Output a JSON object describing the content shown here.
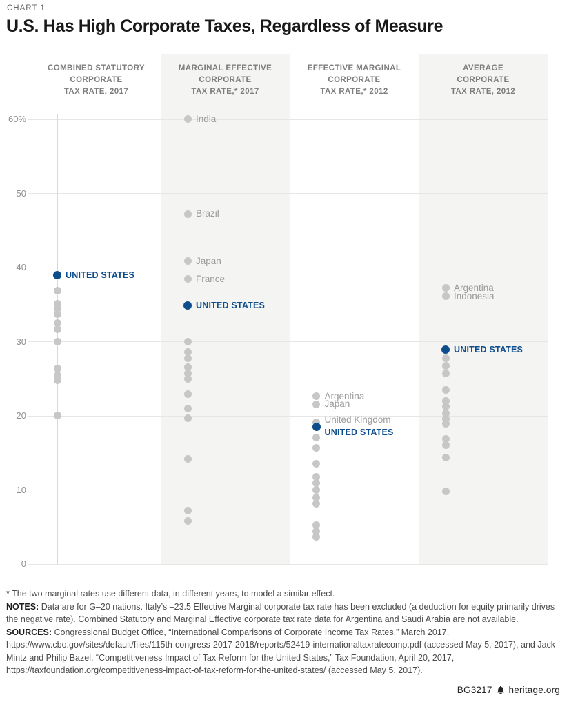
{
  "page": {
    "kicker": "CHART 1",
    "title": "U.S. Has High Corporate Taxes, Regardless of Measure",
    "footer_id": "BG3217",
    "footer_site": "heritage.org"
  },
  "footnotes": {
    "asterisk": "* The two marginal rates use different data, in different years, to model a similar effect.",
    "notes_label": "NOTES:",
    "notes_text": "Data are for G–20 nations. Italy’s –23.5 Effective Marginal corporate tax rate has been excluded (a deduction for equity primarily drives the negative rate). Combined Statutory and Marginal Effective corporate tax rate data for Argentina and Saudi Arabia are not available.",
    "sources_label": "SOURCES:",
    "sources_text": "Congressional Budget Office, “International Comparisons of Corporate Income Tax Rates,” March 2017, https://www.cbo.gov/sites/default/files/115th-congress-2017-2018/reports/52419-internationaltaxratecomp.pdf (accessed May 5, 2017), and Jack Mintz and Philip Bazel, “Competitiveness Impact of Tax Reform for the United States,” Tax Foundation, April 20, 2017, https://taxfoundation.org/competitiveness-impact-of-tax-reform-for-the-united-states/ (accessed May 5, 2017)."
  },
  "colors": {
    "us_blue": "#0e4d8c",
    "dot_gray": "#c7c7c7",
    "band_gray": "#f4f4f2",
    "grid_gray": "#e6e6e4"
  },
  "chart_data": {
    "type": "scatter",
    "subtype": "dot-strip-plot",
    "units": "percent",
    "ylim": [
      0,
      60
    ],
    "grid": true,
    "yticks": [
      {
        "label": "60%",
        "value": 60
      },
      {
        "label": "50",
        "value": 50
      },
      {
        "label": "40",
        "value": 40
      },
      {
        "label": "30",
        "value": 30
      },
      {
        "label": "20",
        "value": 20
      },
      {
        "label": "10",
        "value": 10
      },
      {
        "label": "0",
        "value": 0
      }
    ],
    "columns": [
      {
        "header_lines": [
          "COMBINED STATUTORY",
          "CORPORATE",
          "TAX RATE, 2017"
        ],
        "shaded_band": false,
        "us": {
          "label": "UNITED STATES",
          "value": 38.9
        },
        "labeled_points": [],
        "unlabeled_points": [
          36.8,
          35.1,
          34.4,
          33.7,
          32.5,
          31.6,
          30.0,
          26.3,
          25.4,
          24.7,
          20.0
        ]
      },
      {
        "header_lines": [
          "MARGINAL EFFECTIVE",
          "CORPORATE",
          "TAX RATE,* 2017"
        ],
        "shaded_band": true,
        "us": {
          "label": "UNITED STATES",
          "value": 34.8
        },
        "labeled_points": [
          {
            "label": "India",
            "value": 60.0
          },
          {
            "label": "Brazil",
            "value": 47.2
          },
          {
            "label": "Japan",
            "value": 40.8
          },
          {
            "label": "France",
            "value": 38.4
          }
        ],
        "unlabeled_points": [
          30.0,
          28.6,
          27.7,
          26.5,
          25.7,
          24.9,
          22.9,
          20.9,
          19.6,
          14.1,
          7.2,
          5.8
        ]
      },
      {
        "header_lines": [
          "EFFECTIVE MARGINAL",
          "CORPORATE",
          "TAX RATE,* 2012"
        ],
        "shaded_band": false,
        "us": {
          "label": "UNITED STATES",
          "value": 18.5,
          "label_dy": 8
        },
        "labeled_points": [
          {
            "label": "Argentina",
            "value": 22.6
          },
          {
            "label": "Japan",
            "value": 21.5
          },
          {
            "label": "United Kingdom",
            "value": 19.1,
            "label_dy": -3
          }
        ],
        "unlabeled_points": [
          17.0,
          15.6,
          13.5,
          11.7,
          10.9,
          10.0,
          8.9,
          8.1,
          5.2,
          4.4,
          3.6
        ]
      },
      {
        "header_lines": [
          "AVERAGE",
          "CORPORATE",
          "TAX RATE, 2012"
        ],
        "shaded_band": true,
        "us": {
          "label": "UNITED STATES",
          "value": 28.9
        },
        "labeled_points": [
          {
            "label": "Argentina",
            "value": 37.2
          },
          {
            "label": "Indonesia",
            "value": 36.1,
            "label_dy": 1
          }
        ],
        "unlabeled_points": [
          27.7,
          26.7,
          25.7,
          23.4,
          22.0,
          21.2,
          20.3,
          19.5,
          18.9,
          16.8,
          16.0,
          14.3,
          9.8
        ]
      }
    ]
  }
}
